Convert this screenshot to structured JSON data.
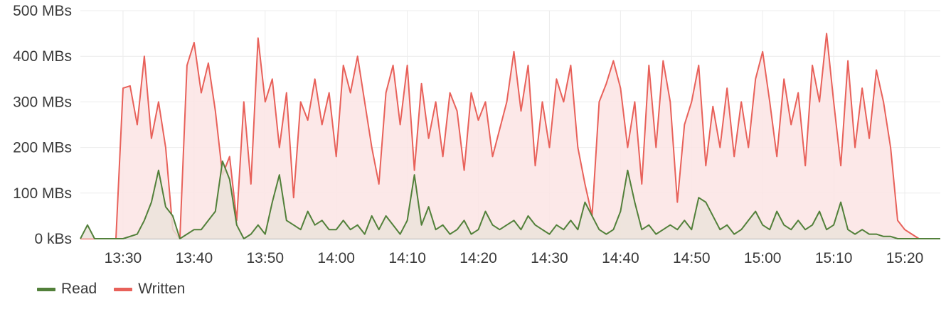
{
  "chart_data": {
    "type": "area",
    "title": "",
    "xlabel": "",
    "ylabel": "",
    "grid": true,
    "legend_position": "bottom-left",
    "ylim": [
      0,
      500
    ],
    "y_ticks": [
      {
        "value": 0,
        "label": "0 kBs"
      },
      {
        "value": 100,
        "label": "100 MBs"
      },
      {
        "value": 200,
        "label": "200 MBs"
      },
      {
        "value": 300,
        "label": "300 MBs"
      },
      {
        "value": 400,
        "label": "400 MBs"
      },
      {
        "value": 500,
        "label": "500 MBs"
      }
    ],
    "xlim": [
      "13:24",
      "15:25"
    ],
    "x_ticks": [
      "13:30",
      "13:40",
      "13:50",
      "14:00",
      "14:10",
      "14:20",
      "14:30",
      "14:40",
      "14:50",
      "15:00",
      "15:10",
      "15:20"
    ],
    "series": [
      {
        "name": "Written",
        "color": "#e8615a",
        "fill": "#fbe4e4",
        "points": [
          [
            "13:24",
            0
          ],
          [
            "13:29",
            0
          ],
          [
            "13:30",
            330
          ],
          [
            "13:31",
            335
          ],
          [
            "13:32",
            250
          ],
          [
            "13:33",
            400
          ],
          [
            "13:34",
            220
          ],
          [
            "13:35",
            300
          ],
          [
            "13:36",
            200
          ],
          [
            "13:37",
            20
          ],
          [
            "13:38",
            0
          ],
          [
            "13:39",
            380
          ],
          [
            "13:40",
            430
          ],
          [
            "13:41",
            320
          ],
          [
            "13:42",
            385
          ],
          [
            "13:43",
            280
          ],
          [
            "13:44",
            140
          ],
          [
            "13:45",
            180
          ],
          [
            "13:46",
            40
          ],
          [
            "13:47",
            300
          ],
          [
            "13:48",
            120
          ],
          [
            "13:49",
            440
          ],
          [
            "13:50",
            300
          ],
          [
            "13:51",
            350
          ],
          [
            "13:52",
            200
          ],
          [
            "13:53",
            320
          ],
          [
            "13:54",
            90
          ],
          [
            "13:55",
            300
          ],
          [
            "13:56",
            260
          ],
          [
            "13:57",
            350
          ],
          [
            "13:58",
            250
          ],
          [
            "13:59",
            320
          ],
          [
            "14:00",
            180
          ],
          [
            "14:01",
            380
          ],
          [
            "14:02",
            320
          ],
          [
            "14:03",
            400
          ],
          [
            "14:04",
            300
          ],
          [
            "14:05",
            200
          ],
          [
            "14:06",
            120
          ],
          [
            "14:07",
            320
          ],
          [
            "14:08",
            380
          ],
          [
            "14:09",
            250
          ],
          [
            "14:10",
            380
          ],
          [
            "14:11",
            150
          ],
          [
            "14:12",
            340
          ],
          [
            "14:13",
            220
          ],
          [
            "14:14",
            300
          ],
          [
            "14:15",
            180
          ],
          [
            "14:16",
            320
          ],
          [
            "14:17",
            280
          ],
          [
            "14:18",
            150
          ],
          [
            "14:19",
            320
          ],
          [
            "14:20",
            260
          ],
          [
            "14:21",
            300
          ],
          [
            "14:22",
            180
          ],
          [
            "14:23",
            240
          ],
          [
            "14:24",
            300
          ],
          [
            "14:25",
            410
          ],
          [
            "14:26",
            280
          ],
          [
            "14:27",
            380
          ],
          [
            "14:28",
            160
          ],
          [
            "14:29",
            300
          ],
          [
            "14:30",
            200
          ],
          [
            "14:31",
            350
          ],
          [
            "14:32",
            300
          ],
          [
            "14:33",
            380
          ],
          [
            "14:34",
            200
          ],
          [
            "14:35",
            120
          ],
          [
            "14:36",
            50
          ],
          [
            "14:37",
            300
          ],
          [
            "14:38",
            340
          ],
          [
            "14:39",
            390
          ],
          [
            "14:40",
            330
          ],
          [
            "14:41",
            200
          ],
          [
            "14:42",
            300
          ],
          [
            "14:43",
            120
          ],
          [
            "14:44",
            380
          ],
          [
            "14:45",
            200
          ],
          [
            "14:46",
            390
          ],
          [
            "14:47",
            300
          ],
          [
            "14:48",
            80
          ],
          [
            "14:49",
            250
          ],
          [
            "14:50",
            300
          ],
          [
            "14:51",
            380
          ],
          [
            "14:52",
            160
          ],
          [
            "14:53",
            290
          ],
          [
            "14:54",
            200
          ],
          [
            "14:55",
            330
          ],
          [
            "14:56",
            180
          ],
          [
            "14:57",
            300
          ],
          [
            "14:58",
            200
          ],
          [
            "14:59",
            350
          ],
          [
            "15:00",
            410
          ],
          [
            "15:01",
            300
          ],
          [
            "15:02",
            180
          ],
          [
            "15:03",
            350
          ],
          [
            "15:04",
            250
          ],
          [
            "15:05",
            320
          ],
          [
            "15:06",
            160
          ],
          [
            "15:07",
            380
          ],
          [
            "15:08",
            300
          ],
          [
            "15:09",
            450
          ],
          [
            "15:10",
            300
          ],
          [
            "15:11",
            160
          ],
          [
            "15:12",
            390
          ],
          [
            "15:13",
            200
          ],
          [
            "15:14",
            330
          ],
          [
            "15:15",
            220
          ],
          [
            "15:16",
            370
          ],
          [
            "15:17",
            300
          ],
          [
            "15:18",
            200
          ],
          [
            "15:19",
            40
          ],
          [
            "15:20",
            20
          ],
          [
            "15:21",
            10
          ],
          [
            "15:22",
            0
          ],
          [
            "15:25",
            0
          ]
        ]
      },
      {
        "name": "Read",
        "color": "#52803a",
        "fill": "#ebe3da",
        "points": [
          [
            "13:24",
            0
          ],
          [
            "13:25",
            30
          ],
          [
            "13:26",
            0
          ],
          [
            "13:30",
            0
          ],
          [
            "13:32",
            10
          ],
          [
            "13:33",
            40
          ],
          [
            "13:34",
            80
          ],
          [
            "13:35",
            150
          ],
          [
            "13:36",
            70
          ],
          [
            "13:37",
            50
          ],
          [
            "13:38",
            0
          ],
          [
            "13:39",
            10
          ],
          [
            "13:40",
            20
          ],
          [
            "13:41",
            20
          ],
          [
            "13:42",
            40
          ],
          [
            "13:43",
            60
          ],
          [
            "13:44",
            170
          ],
          [
            "13:45",
            130
          ],
          [
            "13:46",
            30
          ],
          [
            "13:47",
            0
          ],
          [
            "13:48",
            10
          ],
          [
            "13:49",
            30
          ],
          [
            "13:50",
            10
          ],
          [
            "13:51",
            80
          ],
          [
            "13:52",
            140
          ],
          [
            "13:53",
            40
          ],
          [
            "13:54",
            30
          ],
          [
            "13:55",
            20
          ],
          [
            "13:56",
            60
          ],
          [
            "13:57",
            30
          ],
          [
            "13:58",
            40
          ],
          [
            "13:59",
            20
          ],
          [
            "14:00",
            20
          ],
          [
            "14:01",
            40
          ],
          [
            "14:02",
            20
          ],
          [
            "14:03",
            30
          ],
          [
            "14:04",
            10
          ],
          [
            "14:05",
            50
          ],
          [
            "14:06",
            20
          ],
          [
            "14:07",
            50
          ],
          [
            "14:08",
            30
          ],
          [
            "14:09",
            10
          ],
          [
            "14:10",
            40
          ],
          [
            "14:11",
            140
          ],
          [
            "14:12",
            30
          ],
          [
            "14:13",
            70
          ],
          [
            "14:14",
            20
          ],
          [
            "14:15",
            30
          ],
          [
            "14:16",
            10
          ],
          [
            "14:17",
            20
          ],
          [
            "14:18",
            40
          ],
          [
            "14:19",
            10
          ],
          [
            "14:20",
            20
          ],
          [
            "14:21",
            60
          ],
          [
            "14:22",
            30
          ],
          [
            "14:23",
            20
          ],
          [
            "14:24",
            30
          ],
          [
            "14:25",
            40
          ],
          [
            "14:26",
            20
          ],
          [
            "14:27",
            50
          ],
          [
            "14:28",
            30
          ],
          [
            "14:29",
            20
          ],
          [
            "14:30",
            10
          ],
          [
            "14:31",
            30
          ],
          [
            "14:32",
            20
          ],
          [
            "14:33",
            40
          ],
          [
            "14:34",
            20
          ],
          [
            "14:35",
            80
          ],
          [
            "14:36",
            50
          ],
          [
            "14:37",
            20
          ],
          [
            "14:38",
            10
          ],
          [
            "14:39",
            20
          ],
          [
            "14:40",
            60
          ],
          [
            "14:41",
            150
          ],
          [
            "14:42",
            80
          ],
          [
            "14:43",
            20
          ],
          [
            "14:44",
            30
          ],
          [
            "14:45",
            10
          ],
          [
            "14:46",
            20
          ],
          [
            "14:47",
            30
          ],
          [
            "14:48",
            20
          ],
          [
            "14:49",
            40
          ],
          [
            "14:50",
            20
          ],
          [
            "14:51",
            90
          ],
          [
            "14:52",
            80
          ],
          [
            "14:53",
            50
          ],
          [
            "14:54",
            20
          ],
          [
            "14:55",
            30
          ],
          [
            "14:56",
            10
          ],
          [
            "14:57",
            20
          ],
          [
            "14:58",
            40
          ],
          [
            "14:59",
            60
          ],
          [
            "15:00",
            30
          ],
          [
            "15:01",
            20
          ],
          [
            "15:02",
            60
          ],
          [
            "15:03",
            30
          ],
          [
            "15:04",
            20
          ],
          [
            "15:05",
            40
          ],
          [
            "15:06",
            20
          ],
          [
            "15:07",
            30
          ],
          [
            "15:08",
            60
          ],
          [
            "15:09",
            20
          ],
          [
            "15:10",
            30
          ],
          [
            "15:11",
            80
          ],
          [
            "15:12",
            20
          ],
          [
            "15:13",
            10
          ],
          [
            "15:14",
            20
          ],
          [
            "15:15",
            10
          ],
          [
            "15:16",
            10
          ],
          [
            "15:17",
            5
          ],
          [
            "15:18",
            5
          ],
          [
            "15:19",
            0
          ],
          [
            "15:25",
            0
          ]
        ]
      }
    ]
  }
}
